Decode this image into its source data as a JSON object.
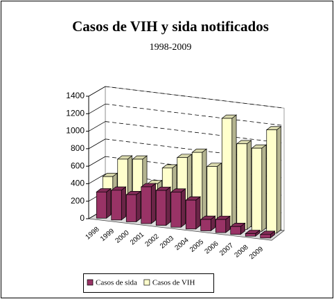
{
  "chart_data": {
    "type": "bar3d",
    "title": "Casos de VIH y sida notificados",
    "subtitle": "1998-2009",
    "categories": [
      "1998",
      "1999",
      "2000",
      "2001",
      "2002",
      "2003",
      "2004",
      "2005",
      "2006",
      "2007",
      "2008",
      "2009"
    ],
    "series": [
      {
        "name": "Casos de sida",
        "color": "#993366",
        "values": [
          300,
          340,
          310,
          420,
          400,
          400,
          330,
          130,
          150,
          90,
          30,
          40
        ]
      },
      {
        "name": "Casos de VIH",
        "color": "#ffffcc",
        "values": [
          420,
          640,
          660,
          400,
          600,
          740,
          820,
          680,
          1250,
          980,
          950,
          1180
        ]
      }
    ],
    "ylim": [
      0,
      1400
    ],
    "yticks": [
      0,
      200,
      400,
      600,
      800,
      1000,
      1200,
      1400
    ],
    "grid": true,
    "legend": "bottom"
  }
}
